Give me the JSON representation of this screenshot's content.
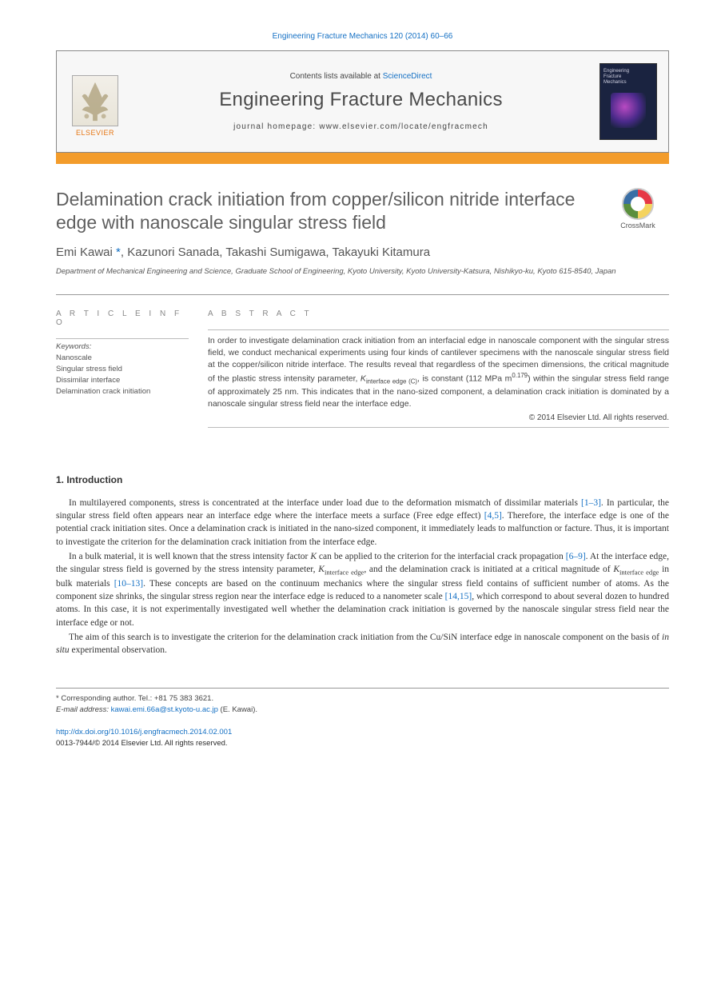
{
  "citation": "Engineering Fracture Mechanics 120 (2014) 60–66",
  "header": {
    "contents_prefix": "Contents lists available at ",
    "contents_link": "ScienceDirect",
    "journal": "Engineering Fracture Mechanics",
    "homepage_label": "journal homepage: ",
    "homepage_url": "www.elsevier.com/locate/engfracmech",
    "publisher": "ELSEVIER",
    "cover_title_1": "Engineering",
    "cover_title_2": "Fracture",
    "cover_title_3": "Mechanics"
  },
  "title": "Delamination crack initiation from copper/silicon nitride interface edge with nanoscale singular stress field",
  "crossmark": "CrossMark",
  "authors_html": "Emi Kawai <span class='author-link'>*</span>, Kazunori Sanada, Takashi Sumigawa, Takayuki Kitamura",
  "affiliation": "Department of Mechanical Engineering and Science, Graduate School of Engineering, Kyoto University, Kyoto University-Katsura, Nishikyo-ku, Kyoto 615-8540, Japan",
  "article_info_heading": "A R T I C L E   I N F O",
  "keywords_label": "Keywords:",
  "keywords": [
    "Nanoscale",
    "Singular stress field",
    "Dissimilar interface",
    "Delamination crack initiation"
  ],
  "abstract_heading": "A B S T R A C T",
  "abstract_html": "In order to investigate delamination crack initiation from an interfacial edge in nanoscale component with the singular stress field, we conduct mechanical experiments using four kinds of cantilever specimens with the nanoscale singular stress field at the copper/silicon nitride interface. The results reveal that regardless of the specimen dimensions, the critical magnitude of the plastic stress intensity parameter, <span class='italic'>K</span><span class='sub'>interface edge (C)</span>, is constant (112 MPa m<span class='sup'>0.179</span>) within the singular stress field range of approximately 25 nm. This indicates that in the nano-sized component, a delamination crack initiation is dominated by a nanoscale singular stress field near the interface edge.",
  "abstract_copyright": "© 2014 Elsevier Ltd. All rights reserved.",
  "section1_heading": "1. Introduction",
  "para1_html": "In multilayered components, stress is concentrated at the interface under load due to the deformation mismatch of dissimilar materials <span class='ref-link'>[1–3]</span>. In particular, the singular stress field often appears near an interface edge where the interface meets a surface (Free edge effect) <span class='ref-link'>[4,5]</span>. Therefore, the interface edge is one of the potential crack initiation sites. Once a delamination crack is initiated in the nano-sized component, it immediately leads to malfunction or facture. Thus, it is important to investigate the criterion for the delamination crack initiation from the interface edge.",
  "para2_html": "In a bulk material, it is well known that the stress intensity factor <span class='italic'>K</span> can be applied to the criterion for the interfacial crack propagation <span class='ref-link'>[6–9]</span>. At the interface edge, the singular stress field is governed by the stress intensity parameter, <span class='italic'>K</span><span class='sub'>interface edge</span>, and the delamination crack is initiated at a critical magnitude of <span class='italic'>K</span><span class='sub'>interface edge</span> in bulk materials <span class='ref-link'>[10–13]</span>. These concepts are based on the continuum mechanics where the singular stress field contains of sufficient number of atoms. As the component size shrinks, the singular stress region near the interface edge is reduced to a nanometer scale <span class='ref-link'>[14,15]</span>, which correspond to about several dozen to hundred atoms. In this case, it is not experimentally investigated well whether the delamination crack initiation is governed by the nanoscale singular stress field near the interface edge or not.",
  "para3_html": "The aim of this search is to investigate the criterion for the delamination crack initiation from the Cu/SiN interface edge in nanoscale component on the basis of <span class='italic'>in situ</span> experimental observation.",
  "footer": {
    "corr": "* Corresponding author. Tel.: +81 75 383 3621.",
    "email_label": "E-mail address: ",
    "email": "kawai.emi.66a@st.kyoto-u.ac.jp",
    "email_suffix": " (E. Kawai)."
  },
  "doi": "http://dx.doi.org/10.1016/j.engfracmech.2014.02.001",
  "issn_line": "0013-7944/© 2014 Elsevier Ltd. All rights reserved."
}
